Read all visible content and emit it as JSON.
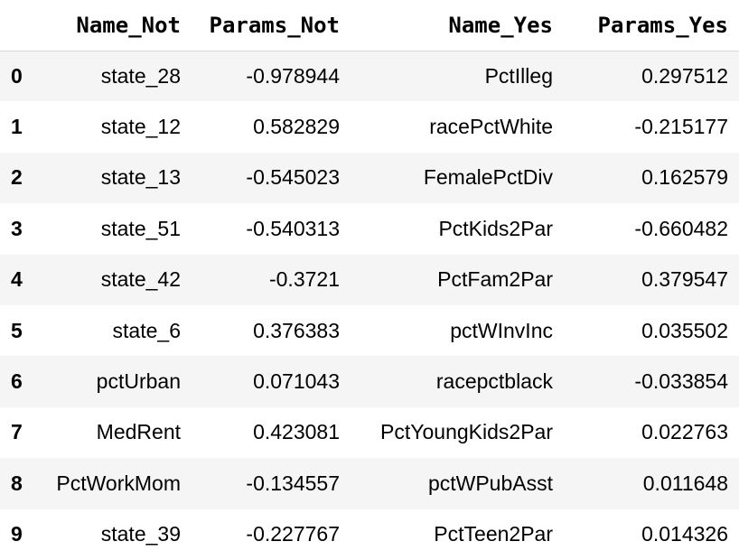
{
  "table": {
    "columns": [
      "Name_Not",
      "Params_Not",
      "Name_Yes",
      "Params_Yes"
    ],
    "rows": [
      {
        "index": "0",
        "name_not": "state_28",
        "params_not": "-0.978944",
        "name_yes": "PctIlleg",
        "params_yes": "0.297512"
      },
      {
        "index": "1",
        "name_not": "state_12",
        "params_not": "0.582829",
        "name_yes": "racePctWhite",
        "params_yes": "-0.215177"
      },
      {
        "index": "2",
        "name_not": "state_13",
        "params_not": "-0.545023",
        "name_yes": "FemalePctDiv",
        "params_yes": "0.162579"
      },
      {
        "index": "3",
        "name_not": "state_51",
        "params_not": "-0.540313",
        "name_yes": "PctKids2Par",
        "params_yes": "-0.660482"
      },
      {
        "index": "4",
        "name_not": "state_42",
        "params_not": "-0.3721",
        "name_yes": "PctFam2Par",
        "params_yes": "0.379547"
      },
      {
        "index": "5",
        "name_not": "state_6",
        "params_not": "0.376383",
        "name_yes": "pctWInvInc",
        "params_yes": "0.035502"
      },
      {
        "index": "6",
        "name_not": "pctUrban",
        "params_not": "0.071043",
        "name_yes": "racepctblack",
        "params_yes": "-0.033854"
      },
      {
        "index": "7",
        "name_not": "MedRent",
        "params_not": "0.423081",
        "name_yes": "PctYoungKids2Par",
        "params_yes": "0.022763"
      },
      {
        "index": "8",
        "name_not": "PctWorkMom",
        "params_not": "-0.134557",
        "name_yes": "pctWPubAsst",
        "params_yes": "0.011648"
      },
      {
        "index": "9",
        "name_not": "state_39",
        "params_not": "-0.227767",
        "name_yes": "PctTeen2Par",
        "params_yes": "0.014326"
      }
    ]
  }
}
